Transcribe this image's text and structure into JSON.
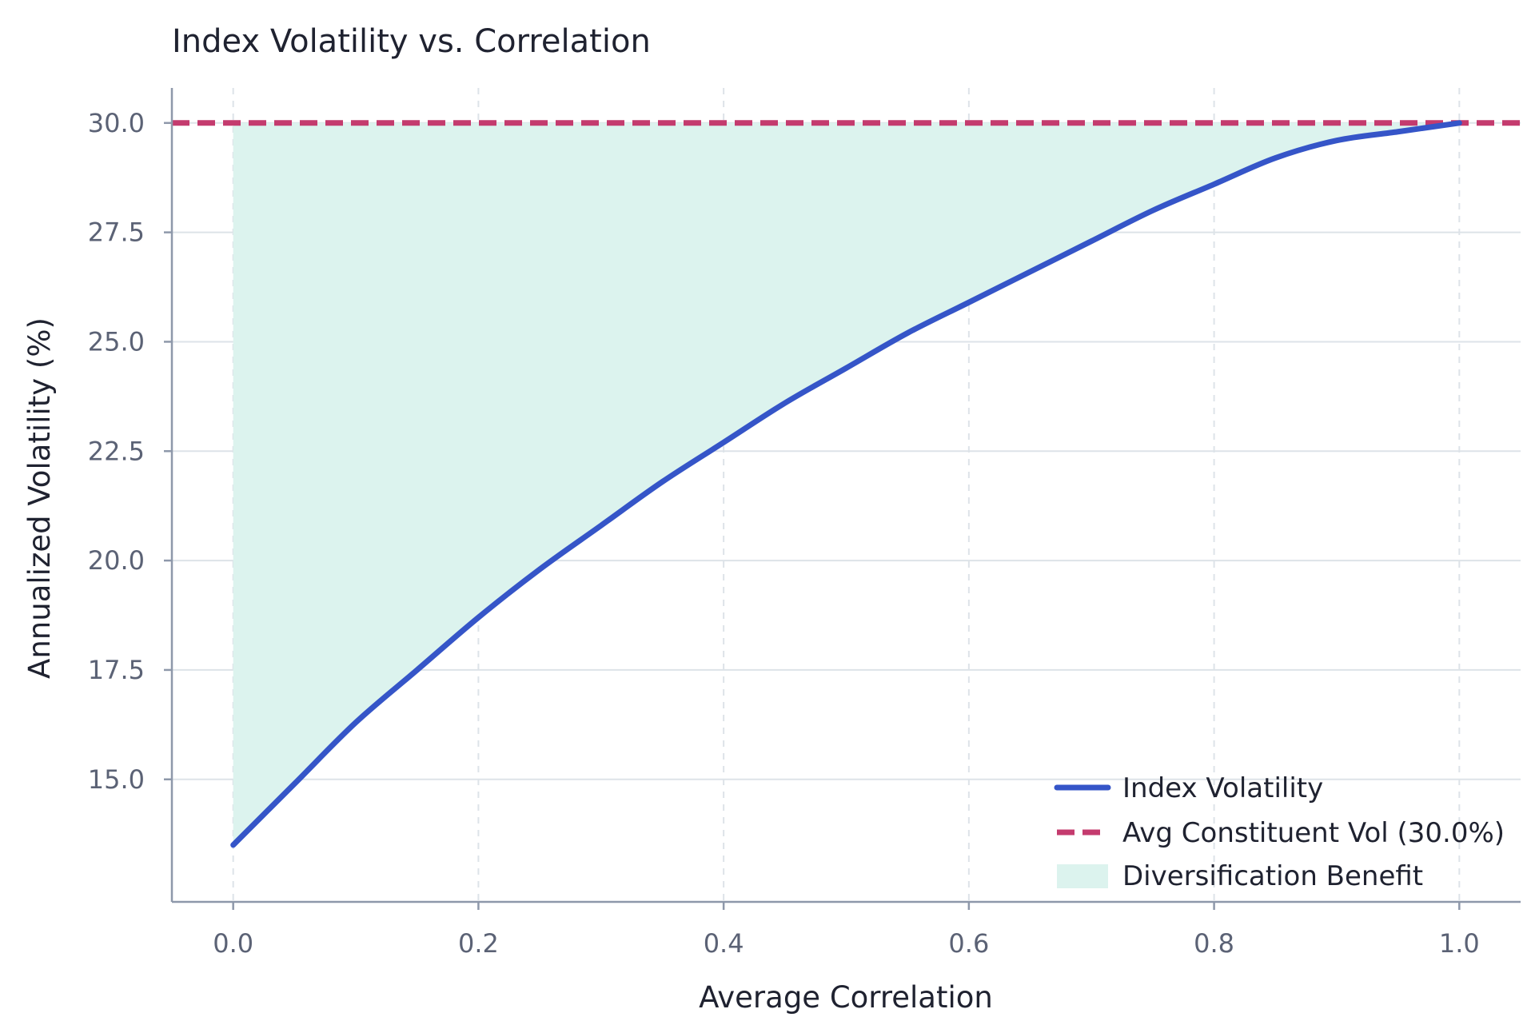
{
  "chart_data": {
    "type": "line",
    "title": "Index Volatility vs. Correlation",
    "xlabel": "Average Correlation",
    "ylabel": "Annualized Volatility (%)",
    "xlim": [
      -0.05,
      1.05
    ],
    "ylim": [
      12.2,
      30.8
    ],
    "x_ticks": [
      0.0,
      0.2,
      0.4,
      0.6,
      0.8,
      1.0
    ],
    "x_tick_labels": [
      "0.0",
      "0.2",
      "0.4",
      "0.6",
      "0.8",
      "1.0"
    ],
    "y_ticks": [
      15.0,
      17.5,
      20.0,
      22.5,
      25.0,
      27.5,
      30.0
    ],
    "y_tick_labels": [
      "15.0",
      "17.5",
      "20.0",
      "22.5",
      "25.0",
      "27.5",
      "30.0"
    ],
    "grid": true,
    "legend_position": "bottom-right",
    "series": [
      {
        "name": "Index Volatility",
        "color": "#3555c8",
        "x": [
          0.0,
          0.05,
          0.1,
          0.15,
          0.2,
          0.25,
          0.3,
          0.35,
          0.4,
          0.45,
          0.5,
          0.55,
          0.6,
          0.65,
          0.7,
          0.75,
          0.8,
          0.85,
          0.9,
          0.95,
          1.0
        ],
        "y": [
          13.5,
          14.9,
          16.3,
          17.5,
          18.7,
          19.8,
          20.8,
          21.8,
          22.7,
          23.6,
          24.4,
          25.2,
          25.9,
          26.6,
          27.3,
          28.0,
          28.6,
          29.2,
          29.6,
          29.8,
          30.0
        ]
      },
      {
        "name": "Avg Constituent Vol (30.0%)",
        "color": "#c43b6e",
        "style": "dashed",
        "y_constant": 30.0
      }
    ],
    "fill": {
      "name": "Diversification Benefit",
      "color": "#dcf3ee",
      "between": [
        "Index Volatility",
        "Avg Constituent Vol (30.0%)"
      ]
    }
  }
}
